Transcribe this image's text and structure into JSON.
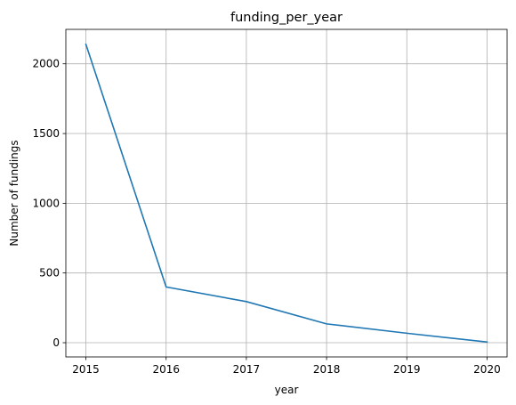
{
  "chart_data": {
    "type": "line",
    "title": "funding_per_year",
    "xlabel": "year",
    "ylabel": "Number of fundings",
    "x": [
      2015,
      2016,
      2017,
      2018,
      2019,
      2020
    ],
    "series": [
      {
        "values": [
          2140,
          400,
          295,
          135,
          68,
          5
        ],
        "color": "#1f77b4"
      }
    ],
    "xticks": [
      "2015",
      "2016",
      "2017",
      "2018",
      "2019",
      "2020"
    ],
    "yticks": [
      "0",
      "500",
      "1000",
      "1500",
      "2000"
    ],
    "xlim": [
      2014.75,
      2020.25
    ],
    "ylim": [
      -102,
      2247
    ],
    "grid": true,
    "grid_color": "#b0b0b0"
  }
}
